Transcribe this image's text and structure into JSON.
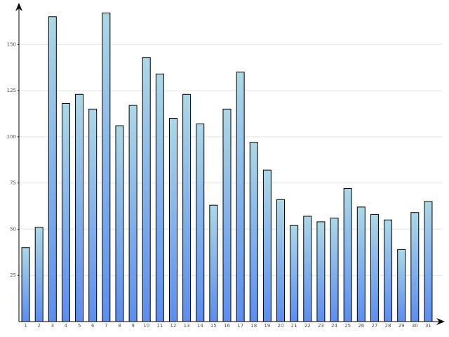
{
  "chart_data": {
    "type": "bar",
    "categories": [
      "1",
      "2",
      "3",
      "4",
      "5",
      "6",
      "7",
      "8",
      "9",
      "10",
      "11",
      "12",
      "13",
      "14",
      "15",
      "16",
      "17",
      "18",
      "19",
      "20",
      "21",
      "22",
      "23",
      "24",
      "25",
      "26",
      "27",
      "28",
      "29",
      "30",
      "31"
    ],
    "values": [
      40,
      51,
      165,
      118,
      123,
      115,
      167,
      106,
      117,
      143,
      134,
      110,
      123,
      107,
      63,
      115,
      135,
      97,
      82,
      66,
      52,
      57,
      54,
      56,
      72,
      62,
      58,
      55,
      39,
      59,
      65
    ],
    "colors": [
      "#add8e6",
      "#5b8ef0"
    ],
    "ylim": [
      0,
      171
    ],
    "yticks": [
      25,
      50,
      75,
      100,
      125,
      150
    ],
    "grid": true
  }
}
